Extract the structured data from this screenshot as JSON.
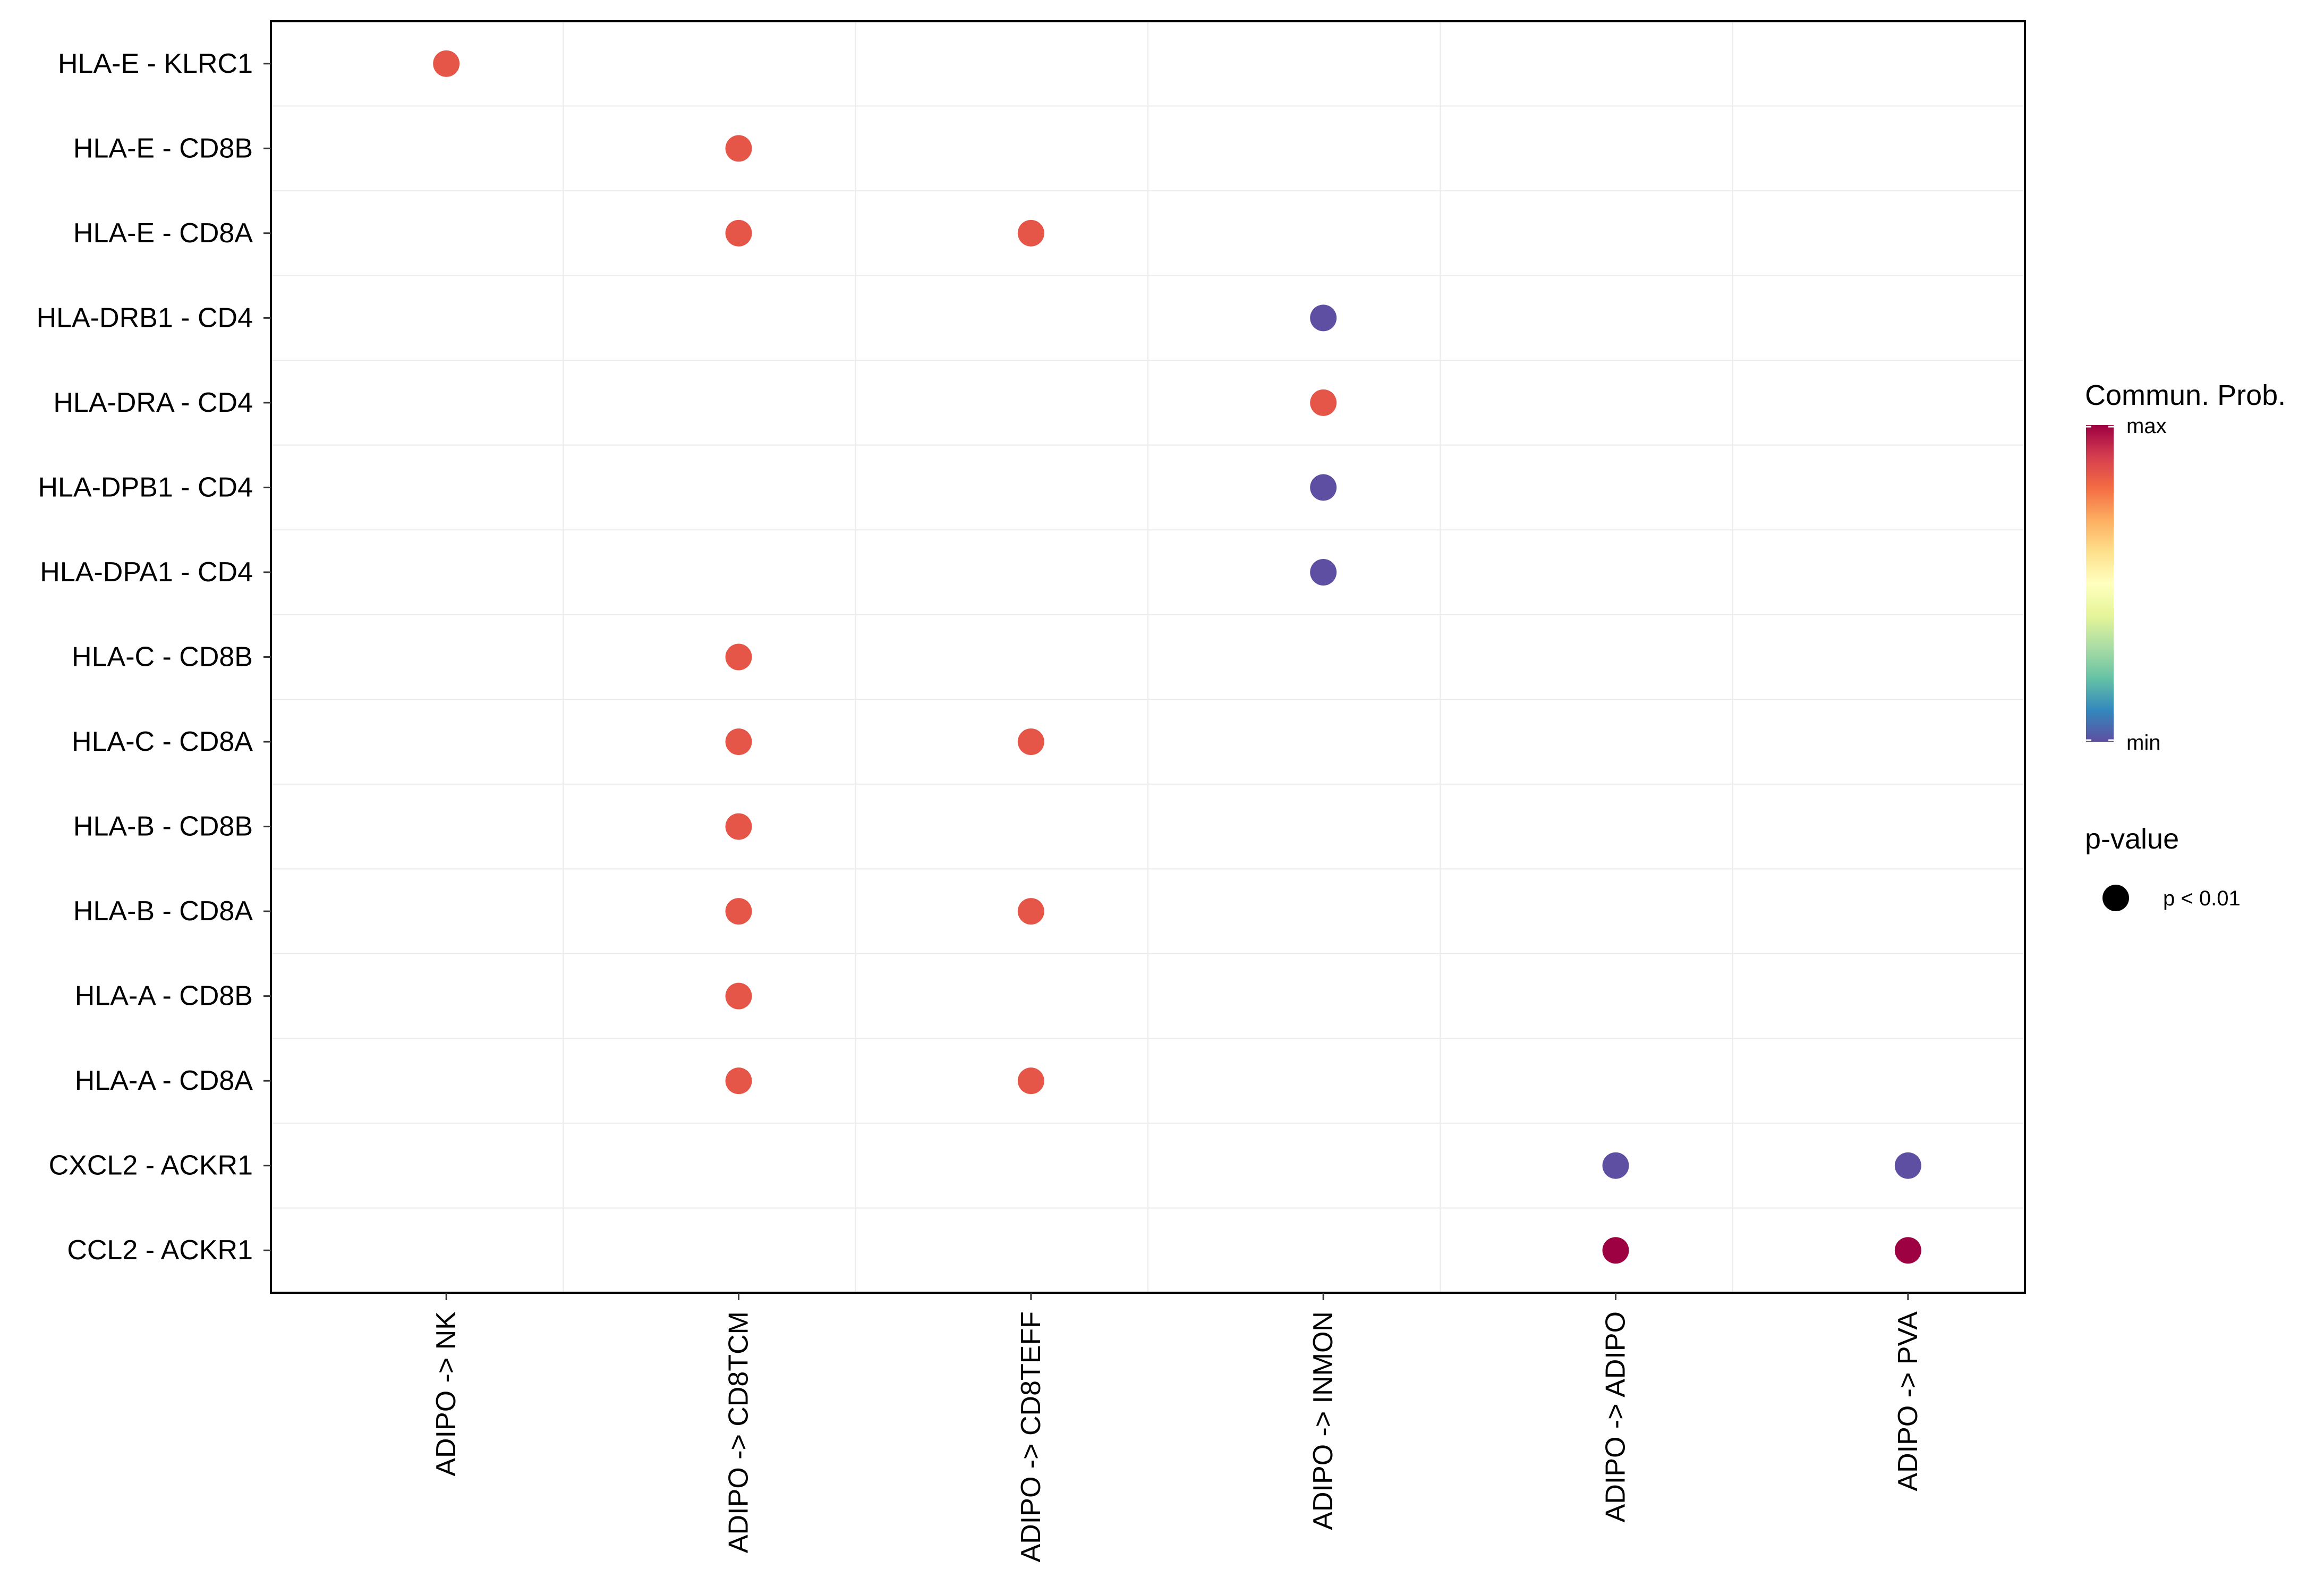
{
  "chart_data": {
    "type": "scatter",
    "title": "",
    "xlabel": "",
    "ylabel": "",
    "grid": true,
    "x_categories": [
      "ADIPO -> NK",
      "ADIPO -> CD8TCM",
      "ADIPO -> CD8TEFF",
      "ADIPO -> INMON",
      "ADIPO -> ADIPO",
      "ADIPO -> PVA"
    ],
    "y_categories": [
      "HLA-E - KLRC1",
      "HLA-E - CD8B",
      "HLA-E - CD8A",
      "HLA-DRB1 - CD4",
      "HLA-DRA - CD4",
      "HLA-DPB1 - CD4",
      "HLA-DPA1 - CD4",
      "HLA-C - CD8B",
      "HLA-C - CD8A",
      "HLA-B - CD8B",
      "HLA-B - CD8A",
      "HLA-A - CD8B",
      "HLA-A - CD8A",
      "CXCL2 - ACKR1",
      "CCL2 - ACKR1"
    ],
    "points": [
      {
        "x": "ADIPO -> NK",
        "y": "HLA-E - KLRC1",
        "prob": 0.85,
        "pval": "p < 0.01"
      },
      {
        "x": "ADIPO -> CD8TCM",
        "y": "HLA-E - CD8B",
        "prob": 0.85,
        "pval": "p < 0.01"
      },
      {
        "x": "ADIPO -> CD8TCM",
        "y": "HLA-E - CD8A",
        "prob": 0.85,
        "pval": "p < 0.01"
      },
      {
        "x": "ADIPO -> CD8TEFF",
        "y": "HLA-E - CD8A",
        "prob": 0.85,
        "pval": "p < 0.01"
      },
      {
        "x": "ADIPO -> INMON",
        "y": "HLA-DRB1 - CD4",
        "prob": 0.0,
        "pval": "p < 0.01"
      },
      {
        "x": "ADIPO -> INMON",
        "y": "HLA-DRA - CD4",
        "prob": 0.85,
        "pval": "p < 0.01"
      },
      {
        "x": "ADIPO -> INMON",
        "y": "HLA-DPB1 - CD4",
        "prob": 0.0,
        "pval": "p < 0.01"
      },
      {
        "x": "ADIPO -> INMON",
        "y": "HLA-DPA1 - CD4",
        "prob": 0.0,
        "pval": "p < 0.01"
      },
      {
        "x": "ADIPO -> CD8TCM",
        "y": "HLA-C - CD8B",
        "prob": 0.85,
        "pval": "p < 0.01"
      },
      {
        "x": "ADIPO -> CD8TCM",
        "y": "HLA-C - CD8A",
        "prob": 0.85,
        "pval": "p < 0.01"
      },
      {
        "x": "ADIPO -> CD8TEFF",
        "y": "HLA-C - CD8A",
        "prob": 0.85,
        "pval": "p < 0.01"
      },
      {
        "x": "ADIPO -> CD8TCM",
        "y": "HLA-B - CD8B",
        "prob": 0.85,
        "pval": "p < 0.01"
      },
      {
        "x": "ADIPO -> CD8TCM",
        "y": "HLA-B - CD8A",
        "prob": 0.85,
        "pval": "p < 0.01"
      },
      {
        "x": "ADIPO -> CD8TEFF",
        "y": "HLA-B - CD8A",
        "prob": 0.85,
        "pval": "p < 0.01"
      },
      {
        "x": "ADIPO -> CD8TCM",
        "y": "HLA-A - CD8B",
        "prob": 0.85,
        "pval": "p < 0.01"
      },
      {
        "x": "ADIPO -> CD8TCM",
        "y": "HLA-A - CD8A",
        "prob": 0.85,
        "pval": "p < 0.01"
      },
      {
        "x": "ADIPO -> CD8TEFF",
        "y": "HLA-A - CD8A",
        "prob": 0.85,
        "pval": "p < 0.01"
      },
      {
        "x": "ADIPO -> ADIPO",
        "y": "CXCL2 - ACKR1",
        "prob": 0.0,
        "pval": "p < 0.01"
      },
      {
        "x": "ADIPO -> PVA",
        "y": "CXCL2 - ACKR1",
        "prob": 0.0,
        "pval": "p < 0.01"
      },
      {
        "x": "ADIPO -> ADIPO",
        "y": "CCL2 - ACKR1",
        "prob": 1.0,
        "pval": "p < 0.01"
      },
      {
        "x": "ADIPO -> PVA",
        "y": "CCL2 - ACKR1",
        "prob": 1.0,
        "pval": "p < 0.01"
      }
    ],
    "color_scale": {
      "title": "Commun. Prob.",
      "max_label": "max",
      "min_label": "min",
      "colors_max_to_min": [
        "#9E0142",
        "#D53E4F",
        "#F46D43",
        "#FDAE61",
        "#FEE08B",
        "#FFFFBF",
        "#E6F598",
        "#ABDDA4",
        "#66C2A5",
        "#3288BD",
        "#5E4FA2"
      ]
    },
    "size_legend": {
      "title": "p-value",
      "entries": [
        "p < 0.01"
      ]
    }
  }
}
